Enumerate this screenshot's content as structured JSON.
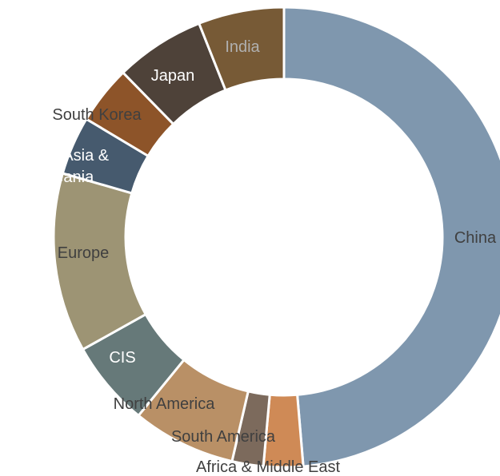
{
  "chart_data": {
    "type": "pie",
    "variant": "donut",
    "title": "",
    "categories": [
      "China",
      "Africa & Middle East",
      "South America",
      "North America",
      "CIS",
      "Europe",
      "Other Asia & Oceania",
      "South Korea",
      "Japan",
      "India"
    ],
    "values": [
      51.0,
      2.9,
      2.3,
      7.6,
      6.3,
      13.2,
      4.3,
      4.3,
      6.6,
      6.3
    ],
    "colors": [
      "#7f97ae",
      "#cf8a56",
      "#7c6a5c",
      "#b99066",
      "#667979",
      "#9d9474",
      "#465a6e",
      "#8d5429",
      "#4e4239",
      "#775a36"
    ],
    "label_colors": [
      "#404040",
      "#404040",
      "#404040",
      "#404040",
      "#ffffff",
      "#404040",
      "#ffffff",
      "#404040",
      "#ffffff",
      "#b0b0b0"
    ],
    "legend": "none"
  }
}
